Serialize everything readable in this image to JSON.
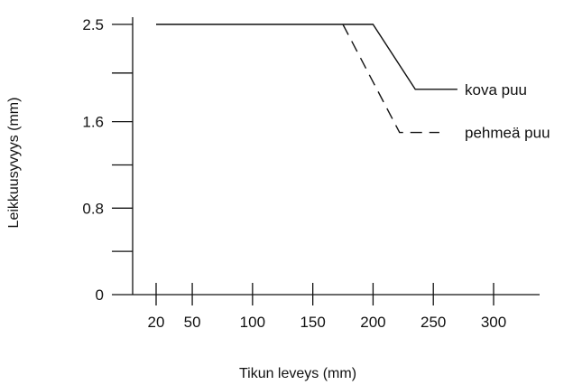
{
  "chart_data": {
    "type": "line",
    "title": "",
    "xlabel": "Tikun leveys (mm)",
    "ylabel": "Leikkuusyvyys (mm)",
    "xlim": [
      10,
      340
    ],
    "ylim": [
      0,
      2.5
    ],
    "x_ticks": [
      20,
      50,
      100,
      150,
      200,
      250,
      300
    ],
    "y_ticks": [
      0,
      0.8,
      1.6,
      2.5
    ],
    "y_tick_labels": [
      "0",
      "0.8",
      "1.6",
      "2.5"
    ],
    "grid": false,
    "legend_placement": "inline-right",
    "series": [
      {
        "name": "kova puu",
        "style": "solid",
        "color": "#111111",
        "x": [
          20,
          200,
          235,
          270
        ],
        "y": [
          2.5,
          2.5,
          1.9,
          1.9
        ]
      },
      {
        "name": "pehmeä puu",
        "style": "dashed",
        "color": "#111111",
        "x": [
          175,
          222,
          255
        ],
        "y": [
          2.5,
          1.5,
          1.5
        ]
      }
    ]
  }
}
